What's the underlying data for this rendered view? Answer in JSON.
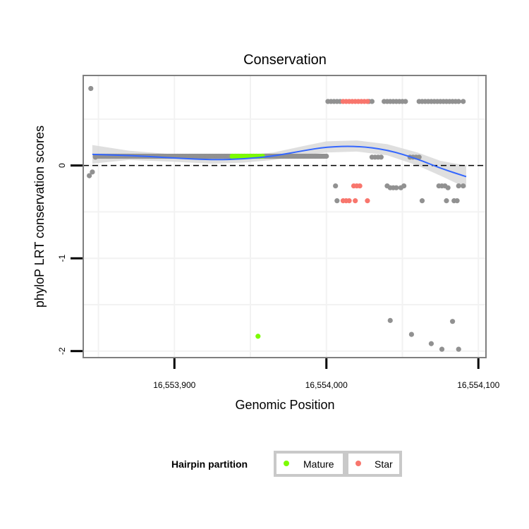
{
  "chart_data": {
    "type": "scatter",
    "title": "Conservation",
    "xlabel": "Genomic Position",
    "ylabel": "phyloP LRT conservation scores",
    "xlim": [
      16553840,
      16554105
    ],
    "ylim": [
      -2.07,
      0.97
    ],
    "x_ticks": [
      16553900,
      16554000,
      16554100
    ],
    "x_tick_labels": [
      "16,553,900",
      "16,554,000",
      "16,554,100"
    ],
    "y_ticks": [
      0,
      -1,
      -2
    ],
    "y_tick_labels": [
      "0",
      "-1",
      "-2"
    ],
    "grid": true,
    "reference_line": {
      "y": 0,
      "style": "dashed"
    },
    "legend": {
      "title": "Hairpin partition",
      "position": "bottom",
      "entries": [
        {
          "label": "Mature",
          "color": "#7cfc00"
        },
        {
          "label": "Star",
          "color": "#f8766d"
        }
      ]
    },
    "colors": {
      "other": "#919191",
      "Mature": "#7cfc00",
      "Star": "#f8766d",
      "smooth": "#3366ff",
      "band": "#d9d9d9"
    },
    "points": {
      "other": [
        [
          16553845,
          0.83
        ],
        [
          16553844,
          -0.11
        ],
        [
          16553846,
          -0.07
        ],
        [
          16553848,
          0.09
        ],
        [
          16554042,
          -1.67
        ],
        [
          16554056,
          -1.82
        ],
        [
          16554069,
          -1.92
        ],
        [
          16554076,
          -1.98
        ],
        [
          16554083,
          -1.68
        ],
        [
          16554087,
          -1.98
        ],
        [
          16554001,
          0.69
        ],
        [
          16554003,
          0.69
        ],
        [
          16554005,
          0.69
        ],
        [
          16554007,
          0.69
        ],
        [
          16554009,
          0.69
        ],
        [
          16554028,
          0.69
        ],
        [
          16554030,
          0.69
        ],
        [
          16554038,
          0.69
        ],
        [
          16554040,
          0.69
        ],
        [
          16554042,
          0.69
        ],
        [
          16554044,
          0.69
        ],
        [
          16554046,
          0.69
        ],
        [
          16554048,
          0.69
        ],
        [
          16554050,
          0.69
        ],
        [
          16554052,
          0.69
        ],
        [
          16554061,
          0.69
        ],
        [
          16554063,
          0.69
        ],
        [
          16554065,
          0.69
        ],
        [
          16554067,
          0.69
        ],
        [
          16554069,
          0.69
        ],
        [
          16554071,
          0.69
        ],
        [
          16554073,
          0.69
        ],
        [
          16554075,
          0.69
        ],
        [
          16554077,
          0.69
        ],
        [
          16554079,
          0.69
        ],
        [
          16554081,
          0.69
        ],
        [
          16554083,
          0.69
        ],
        [
          16554085,
          0.69
        ],
        [
          16554087,
          0.69
        ],
        [
          16554090,
          0.69
        ],
        [
          16554030,
          0.09
        ],
        [
          16554032,
          0.09
        ],
        [
          16554034,
          0.09
        ],
        [
          16554036,
          0.09
        ],
        [
          16554055,
          0.09
        ],
        [
          16554057,
          0.09
        ],
        [
          16554059,
          0.09
        ],
        [
          16554061,
          0.09
        ],
        [
          16554006,
          -0.22
        ],
        [
          16554040,
          -0.22
        ],
        [
          16554042,
          -0.24
        ],
        [
          16554044,
          -0.24
        ],
        [
          16554046,
          -0.24
        ],
        [
          16554049,
          -0.24
        ],
        [
          16554051,
          -0.22
        ],
        [
          16554074,
          -0.22
        ],
        [
          16554076,
          -0.22
        ],
        [
          16554078,
          -0.22
        ],
        [
          16554080,
          -0.24
        ],
        [
          16554087,
          -0.22
        ],
        [
          16554090,
          -0.22
        ],
        [
          16554007,
          -0.38
        ],
        [
          16554063,
          -0.38
        ],
        [
          16554079,
          -0.38
        ],
        [
          16554084,
          -0.38
        ],
        [
          16554086,
          -0.38
        ]
      ],
      "Mature": [
        [
          16553938,
          0.1
        ],
        [
          16553940,
          0.1
        ],
        [
          16553942,
          0.1
        ],
        [
          16553944,
          0.1
        ],
        [
          16553946,
          0.1
        ],
        [
          16553948,
          0.1
        ],
        [
          16553950,
          0.1
        ],
        [
          16553952,
          0.1
        ],
        [
          16553954,
          0.1
        ],
        [
          16553956,
          0.1
        ],
        [
          16553958,
          0.1
        ],
        [
          16553955,
          -1.84
        ]
      ],
      "Star": [
        [
          16554011,
          0.69
        ],
        [
          16554013,
          0.69
        ],
        [
          16554015,
          0.69
        ],
        [
          16554017,
          0.69
        ],
        [
          16554019,
          0.69
        ],
        [
          16554021,
          0.69
        ],
        [
          16554023,
          0.69
        ],
        [
          16554025,
          0.69
        ],
        [
          16554027,
          0.69
        ],
        [
          16554018,
          -0.22
        ],
        [
          16554020,
          -0.22
        ],
        [
          16554022,
          -0.22
        ],
        [
          16554011,
          -0.38
        ],
        [
          16554013,
          -0.38
        ],
        [
          16554015,
          -0.38
        ],
        [
          16554019,
          -0.38
        ],
        [
          16554027,
          -0.38
        ]
      ]
    },
    "dense_band": {
      "x_range": [
        16553848,
        16554000
      ],
      "y": 0.1,
      "color": "#919191"
    },
    "smooth": {
      "x": [
        16553846,
        16553870,
        16553900,
        16553925,
        16553945,
        16553965,
        16553985,
        16554000,
        16554020,
        16554040,
        16554060,
        16554075,
        16554092
      ],
      "y": [
        0.12,
        0.11,
        0.08,
        0.06,
        0.07,
        0.1,
        0.16,
        0.2,
        0.21,
        0.17,
        0.07,
        -0.03,
        -0.12
      ],
      "se": [
        0.1,
        0.05,
        0.04,
        0.04,
        0.04,
        0.04,
        0.05,
        0.06,
        0.06,
        0.06,
        0.07,
        0.08,
        0.12
      ]
    }
  }
}
